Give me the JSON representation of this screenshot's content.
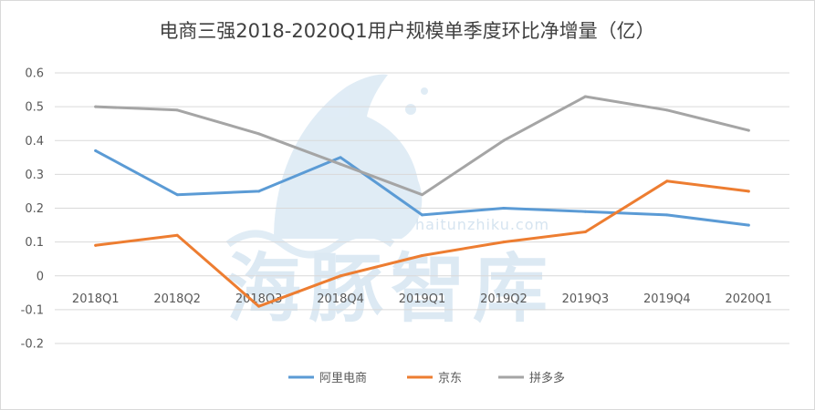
{
  "chart_data": {
    "type": "line",
    "title": "电商三强2018-2020Q1用户规模单季度环比净增量（亿）",
    "xlabel": "",
    "ylabel": "",
    "categories": [
      "2018Q1",
      "2018Q2",
      "2018Q3",
      "2018Q4",
      "2019Q1",
      "2019Q2",
      "2019Q3",
      "2019Q4",
      "2020Q1"
    ],
    "ylim": [
      -0.2,
      0.6
    ],
    "yticks": [
      -0.2,
      -0.1,
      0,
      0.1,
      0.2,
      0.3,
      0.4,
      0.5,
      0.6
    ],
    "grid": true,
    "legend_position": "bottom",
    "series": [
      {
        "name": "阿里电商",
        "color": "#5b9bd5",
        "values": [
          0.37,
          0.24,
          0.25,
          0.35,
          0.18,
          0.2,
          0.19,
          0.18,
          0.15
        ]
      },
      {
        "name": "京东",
        "color": "#ed7d31",
        "values": [
          0.09,
          0.12,
          -0.09,
          0.0,
          0.06,
          0.1,
          0.13,
          0.28,
          0.25
        ]
      },
      {
        "name": "拼多多",
        "color": "#a5a5a5",
        "values": [
          0.5,
          0.49,
          0.42,
          0.33,
          0.24,
          0.4,
          0.53,
          0.49,
          0.43
        ]
      }
    ]
  },
  "watermark": {
    "brand_text": "海豚智库",
    "url_text": "haitunzhiku.com",
    "color": "#d6e6f2"
  }
}
